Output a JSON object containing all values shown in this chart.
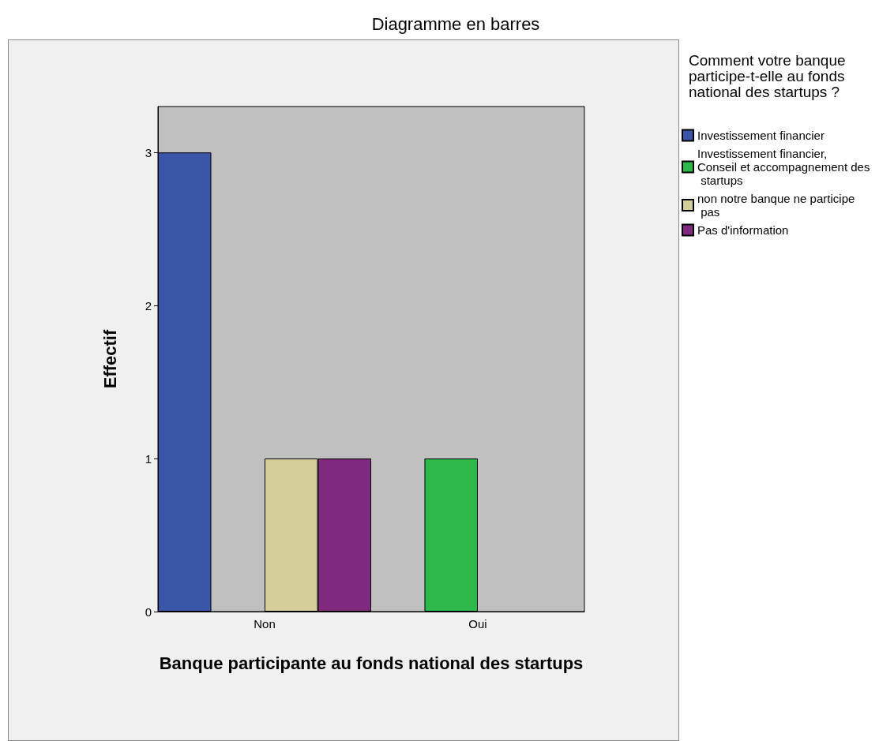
{
  "chart_data": {
    "type": "bar",
    "title": "Diagramme en barres",
    "xlabel": "Banque participante au fonds national des startups",
    "ylabel": "Effectif",
    "legend_title": "Comment votre banque participe-t-elle au fonds national des startups ?",
    "categories": [
      "Non",
      "Oui"
    ],
    "series": [
      {
        "name": "Investissement financier",
        "color": "#3a56a8",
        "values": [
          3,
          null
        ]
      },
      {
        "name": "Investissement financier, Conseil et accompagnement des startups",
        "color": "#2db84a",
        "values": [
          null,
          1
        ]
      },
      {
        "name": "non notre banque ne participe pas",
        "color": "#d4cf9a",
        "values": [
          1,
          null
        ]
      },
      {
        "name": "Pas d'information",
        "color": "#7f2a7f",
        "values": [
          1,
          null
        ]
      }
    ],
    "ylim": [
      0,
      3.3
    ],
    "yticks": [
      0,
      1,
      2,
      3
    ],
    "legend": "right"
  }
}
